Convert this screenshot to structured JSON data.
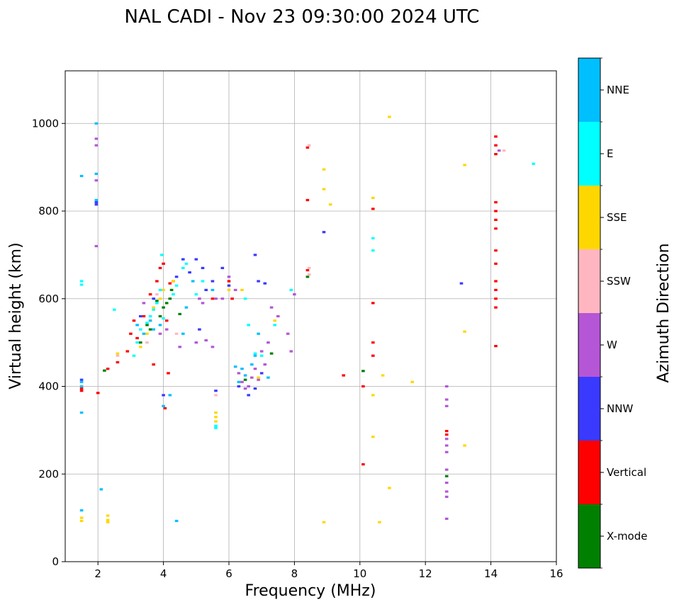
{
  "chart_data": {
    "type": "scatter",
    "title": "NAL CADI - Nov 23 09:30:00 2024 UTC",
    "xlabel": "Frequency (MHz)",
    "ylabel": "Virtual height (km)",
    "xlim": [
      1,
      16
    ],
    "ylim": [
      0,
      1120
    ],
    "xticks": [
      2,
      4,
      6,
      8,
      10,
      12,
      14,
      16
    ],
    "yticks": [
      0,
      200,
      400,
      600,
      800,
      1000
    ],
    "grid": true,
    "colorbar": {
      "title": "Azimuth Direction",
      "categories": [
        {
          "name": "X-mode",
          "color": "#008000"
        },
        {
          "name": "Vertical",
          "color": "#ff0000"
        },
        {
          "name": "NNW",
          "color": "#3a3aff"
        },
        {
          "name": "W",
          "color": "#b556d6"
        },
        {
          "name": "SSW",
          "color": "#ffb6c1"
        },
        {
          "name": "SSE",
          "color": "#ffd700"
        },
        {
          "name": "E",
          "color": "#00ffff"
        },
        {
          "name": "NNE",
          "color": "#00bfff"
        }
      ]
    },
    "series": [
      {
        "name": "X-mode",
        "color": "#008000",
        "points": [
          [
            3.3,
            500
          ],
          [
            3.6,
            530
          ],
          [
            3.9,
            560
          ],
          [
            4.2,
            600
          ],
          [
            4.25,
            620
          ],
          [
            4.5,
            565
          ],
          [
            4.1,
            590
          ],
          [
            3.8,
            595
          ],
          [
            2.2,
            436
          ],
          [
            6.5,
            415
          ],
          [
            7.3,
            475
          ],
          [
            8.4,
            650
          ],
          [
            10.1,
            435
          ],
          [
            12.65,
            195
          ],
          [
            3.5,
            540
          ],
          [
            4.0,
            580
          ]
        ]
      },
      {
        "name": "Vertical",
        "color": "#ff0000",
        "points": [
          [
            1.5,
            395
          ],
          [
            1.5,
            390
          ],
          [
            2.0,
            385
          ],
          [
            2.3,
            440
          ],
          [
            2.6,
            455
          ],
          [
            2.9,
            480
          ],
          [
            3.0,
            520
          ],
          [
            3.1,
            550
          ],
          [
            3.2,
            510
          ],
          [
            3.4,
            560
          ],
          [
            3.6,
            610
          ],
          [
            3.8,
            640
          ],
          [
            3.9,
            670
          ],
          [
            4.0,
            680
          ],
          [
            4.1,
            550
          ],
          [
            4.2,
            635
          ],
          [
            4.3,
            640
          ],
          [
            3.7,
            450
          ],
          [
            4.05,
            350
          ],
          [
            4.15,
            430
          ],
          [
            5.5,
            600
          ],
          [
            6.0,
            640
          ],
          [
            6.1,
            600
          ],
          [
            8.4,
            945
          ],
          [
            8.4,
            825
          ],
          [
            8.4,
            665
          ],
          [
            9.5,
            425
          ],
          [
            10.1,
            400
          ],
          [
            10.1,
            222
          ],
          [
            10.4,
            805
          ],
          [
            10.4,
            590
          ],
          [
            10.4,
            500
          ],
          [
            10.4,
            470
          ],
          [
            12.65,
            298
          ],
          [
            12.65,
            290
          ],
          [
            14.15,
            970
          ],
          [
            14.15,
            950
          ],
          [
            14.15,
            930
          ],
          [
            14.15,
            820
          ],
          [
            14.15,
            800
          ],
          [
            14.15,
            780
          ],
          [
            14.15,
            760
          ],
          [
            14.15,
            710
          ],
          [
            14.15,
            680
          ],
          [
            14.15,
            640
          ],
          [
            14.15,
            620
          ],
          [
            14.15,
            600
          ],
          [
            14.15,
            580
          ],
          [
            14.15,
            492
          ]
        ]
      },
      {
        "name": "NNW",
        "color": "#3a3aff",
        "points": [
          [
            1.5,
            415
          ],
          [
            1.95,
            820
          ],
          [
            1.95,
            815
          ],
          [
            3.3,
            560
          ],
          [
            3.7,
            600
          ],
          [
            4.4,
            650
          ],
          [
            4.6,
            690
          ],
          [
            4.8,
            660
          ],
          [
            5.0,
            690
          ],
          [
            5.2,
            670
          ],
          [
            5.1,
            530
          ],
          [
            5.3,
            620
          ],
          [
            5.5,
            640
          ],
          [
            5.8,
            670
          ],
          [
            6.0,
            630
          ],
          [
            6.3,
            400
          ],
          [
            6.6,
            380
          ],
          [
            6.8,
            395
          ],
          [
            6.8,
            700
          ],
          [
            6.9,
            640
          ],
          [
            7.1,
            635
          ],
          [
            7.0,
            430
          ],
          [
            8.9,
            752
          ],
          [
            13.1,
            635
          ],
          [
            5.6,
            390
          ],
          [
            4.0,
            380
          ]
        ]
      },
      {
        "name": "W",
        "color": "#b556d6",
        "points": [
          [
            1.95,
            965
          ],
          [
            1.95,
            950
          ],
          [
            1.95,
            870
          ],
          [
            1.95,
            720
          ],
          [
            3.4,
            590
          ],
          [
            3.9,
            520
          ],
          [
            4.1,
            530
          ],
          [
            4.5,
            490
          ],
          [
            5.0,
            500
          ],
          [
            5.1,
            600
          ],
          [
            5.2,
            590
          ],
          [
            5.3,
            505
          ],
          [
            5.5,
            490
          ],
          [
            5.6,
            600
          ],
          [
            5.8,
            600
          ],
          [
            6.0,
            650
          ],
          [
            6.2,
            620
          ],
          [
            6.3,
            430
          ],
          [
            6.4,
            410
          ],
          [
            6.5,
            395
          ],
          [
            6.6,
            400
          ],
          [
            6.7,
            420
          ],
          [
            6.8,
            440
          ],
          [
            6.9,
            415
          ],
          [
            7.0,
            480
          ],
          [
            7.1,
            450
          ],
          [
            7.2,
            500
          ],
          [
            7.3,
            580
          ],
          [
            7.5,
            560
          ],
          [
            7.8,
            520
          ],
          [
            7.9,
            480
          ],
          [
            8.0,
            610
          ],
          [
            12.65,
            400
          ],
          [
            12.65,
            370
          ],
          [
            12.65,
            355
          ],
          [
            12.65,
            280
          ],
          [
            12.65,
            265
          ],
          [
            12.65,
            250
          ],
          [
            12.65,
            210
          ],
          [
            12.65,
            180
          ],
          [
            12.65,
            160
          ],
          [
            12.65,
            148
          ],
          [
            12.65,
            98
          ],
          [
            14.25,
            938
          ]
        ]
      },
      {
        "name": "SSW",
        "color": "#ffb6c1",
        "points": [
          [
            2.6,
            470
          ],
          [
            3.5,
            500
          ],
          [
            3.8,
            610
          ],
          [
            4.4,
            520
          ],
          [
            5.6,
            380
          ],
          [
            8.45,
            950
          ],
          [
            8.45,
            670
          ],
          [
            8.45,
            655
          ],
          [
            14.4,
            938
          ]
        ]
      },
      {
        "name": "SSE",
        "color": "#ffd700",
        "points": [
          [
            1.5,
            100
          ],
          [
            1.5,
            93
          ],
          [
            2.3,
            105
          ],
          [
            2.3,
            95
          ],
          [
            2.3,
            90
          ],
          [
            2.6,
            475
          ],
          [
            3.3,
            490
          ],
          [
            3.5,
            520
          ],
          [
            3.7,
            580
          ],
          [
            3.9,
            600
          ],
          [
            4.0,
            620
          ],
          [
            4.3,
            640
          ],
          [
            5.6,
            340
          ],
          [
            5.6,
            330
          ],
          [
            5.6,
            320
          ],
          [
            6.0,
            620
          ],
          [
            6.4,
            620
          ],
          [
            6.9,
            420
          ],
          [
            7.4,
            550
          ],
          [
            8.9,
            895
          ],
          [
            8.9,
            850
          ],
          [
            9.1,
            815
          ],
          [
            10.4,
            830
          ],
          [
            10.4,
            380
          ],
          [
            10.4,
            285
          ],
          [
            10.7,
            425
          ],
          [
            10.9,
            1015
          ],
          [
            10.9,
            168
          ],
          [
            11.6,
            410
          ],
          [
            13.2,
            905
          ],
          [
            13.2,
            525
          ],
          [
            13.2,
            265
          ],
          [
            8.9,
            90
          ],
          [
            10.6,
            90
          ]
        ]
      },
      {
        "name": "E",
        "color": "#00ffff",
        "points": [
          [
            1.5,
            640
          ],
          [
            1.5,
            632
          ],
          [
            2.5,
            575
          ],
          [
            3.1,
            470
          ],
          [
            3.2,
            500
          ],
          [
            3.3,
            530
          ],
          [
            3.5,
            545
          ],
          [
            3.6,
            560
          ],
          [
            3.7,
            575
          ],
          [
            3.8,
            590
          ],
          [
            3.9,
            620
          ],
          [
            3.95,
            700
          ],
          [
            4.0,
            555
          ],
          [
            4.3,
            610
          ],
          [
            4.4,
            630
          ],
          [
            4.6,
            670
          ],
          [
            4.7,
            680
          ],
          [
            5.0,
            610
          ],
          [
            5.2,
            640
          ],
          [
            5.6,
            310
          ],
          [
            5.6,
            305
          ],
          [
            6.5,
            600
          ],
          [
            6.6,
            540
          ],
          [
            6.8,
            475
          ],
          [
            7.0,
            470
          ],
          [
            7.4,
            540
          ],
          [
            7.9,
            620
          ],
          [
            10.4,
            738
          ],
          [
            10.4,
            710
          ],
          [
            15.3,
            908
          ]
        ]
      },
      {
        "name": "NNE",
        "color": "#00bfff",
        "points": [
          [
            1.5,
            880
          ],
          [
            1.5,
            410
          ],
          [
            1.5,
            400
          ],
          [
            1.5,
            340
          ],
          [
            1.5,
            117
          ],
          [
            1.95,
            1000
          ],
          [
            1.95,
            885
          ],
          [
            1.95,
            825
          ],
          [
            2.1,
            165
          ],
          [
            3.2,
            540
          ],
          [
            3.4,
            520
          ],
          [
            3.6,
            550
          ],
          [
            3.7,
            530
          ],
          [
            3.9,
            540
          ],
          [
            4.0,
            355
          ],
          [
            4.2,
            380
          ],
          [
            4.6,
            520
          ],
          [
            4.7,
            580
          ],
          [
            4.9,
            640
          ],
          [
            5.5,
            620
          ],
          [
            6.2,
            445
          ],
          [
            6.3,
            410
          ],
          [
            6.4,
            440
          ],
          [
            6.5,
            425
          ],
          [
            6.7,
            450
          ],
          [
            6.8,
            470
          ],
          [
            7.2,
            420
          ],
          [
            6.9,
            520
          ],
          [
            4.4,
            93
          ]
        ]
      }
    ]
  }
}
